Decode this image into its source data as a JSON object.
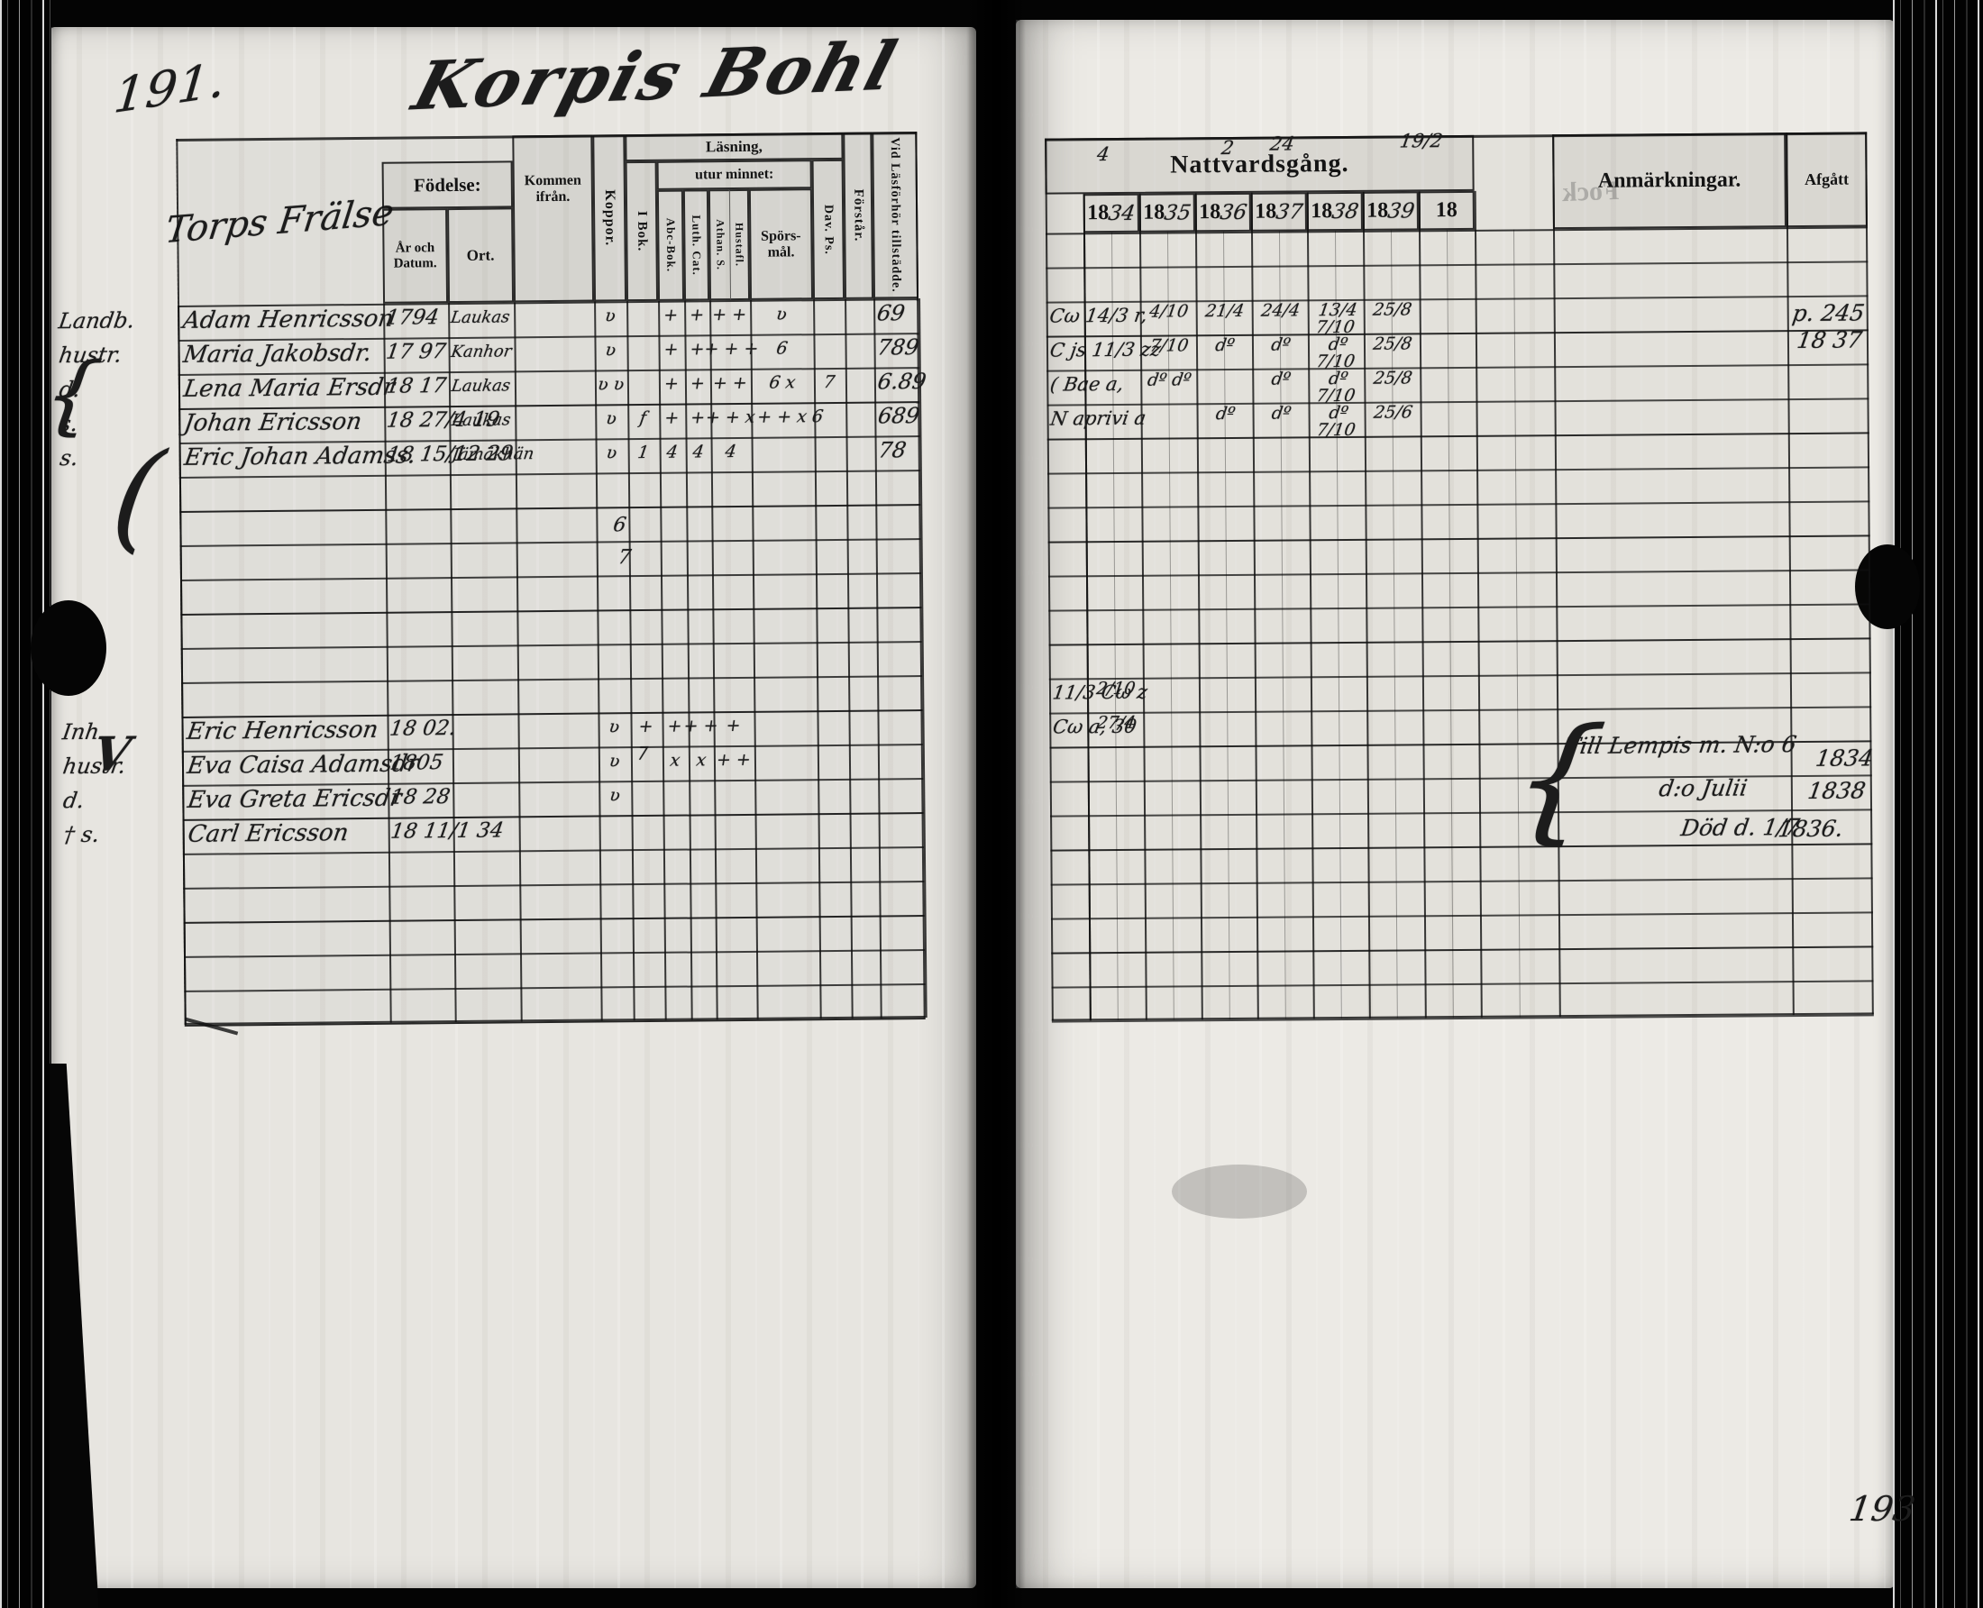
{
  "scan": {
    "left_page_number": "191.",
    "right_page_number": "193",
    "title": "Korpis Bohl",
    "ghost_text": "Fock"
  },
  "left_table": {
    "header": {
      "group_title": "Torps Frälse",
      "fodelse": "Födelse:",
      "ar_och_datum": "År och Datum.",
      "ort": "Ort.",
      "kommen_ifran": "Kommen ifrån.",
      "koppor": "Koppor.",
      "lasning": "Läsning,",
      "utur_minnet": "utur minnet:",
      "i_bok": "I Bok.",
      "abc_bok": "Abc-Bok.",
      "luth_cat": "Luth. Cat.",
      "athan_symb": "Athan. S.",
      "hustafl": "Hustafl.",
      "sporsmal": "Spörs-mål.",
      "dav_ps": "Dav. Ps.",
      "forstar": "Förstår.",
      "vid_lasforhor": "Vid Läsförhör tillstädde."
    },
    "margin_braces": [
      "{",
      "(",
      "V"
    ],
    "rows": [
      {
        "row": 0,
        "margin": "Landb.",
        "name": "Adam Henricsson",
        "born_year": "1794",
        "born_place": "Laukas",
        "marks": [
          "ʋ",
          "",
          "+",
          "+",
          "+ +",
          "ʋ",
          "",
          ""
        ],
        "tillstadde": "69"
      },
      {
        "row": 1,
        "margin": "hustr.",
        "name": "Maria Jakobsdr.",
        "born_year": "17 97",
        "born_place": "Kanhor",
        "marks": [
          "ʋ",
          "",
          "+",
          "+",
          "+ + +",
          "6",
          "",
          ""
        ],
        "tillstadde": "789"
      },
      {
        "row": 2,
        "margin": "d.",
        "name": "Lena Maria Ersdr",
        "born_year": "18 17",
        "born_place": "Laukas",
        "marks": [
          "ʋ ʋ",
          "",
          "+",
          "+",
          "+ +",
          "6 x",
          "7",
          ""
        ],
        "tillstadde": "6.89"
      },
      {
        "row": 3,
        "margin": "s.",
        "name": "Johan Ericsson",
        "born_year": "18 27/4 19",
        "born_place": "Laukas",
        "marks": [
          "ʋ",
          "f",
          "+",
          "+",
          "+ + x",
          "+ + x 6",
          "",
          ""
        ],
        "tillstadde": "689"
      },
      {
        "row": 4,
        "margin": "s.",
        "name": "Eric Johan Adamss.",
        "born_year": "18 15/12 29",
        "born_place": "Jämäkhän",
        "marks": [
          "ʋ",
          "1",
          "4",
          "4",
          "4",
          "",
          "",
          ""
        ],
        "tillstadde": "78"
      },
      {
        "row": 12,
        "margin": "Inh.",
        "name": "Eric Henricsson",
        "born_year": "18 02.",
        "born_place": "",
        "marks": [
          "ʋ",
          "+",
          "+",
          "+ +",
          "+",
          "",
          "",
          ""
        ],
        "tillstadde": ""
      },
      {
        "row": 13,
        "margin": "hustr.",
        "name": "Eva Caisa Adamsdr",
        "born_year": "1805",
        "born_place": "",
        "marks": [
          "ʋ",
          "",
          "x",
          "x",
          "+ +",
          "",
          "",
          ""
        ],
        "tillstadde": ""
      },
      {
        "row": 14,
        "margin": "d.",
        "name": "Eva Greta Ericsdr",
        "born_year": "18 28",
        "born_place": "",
        "marks": [
          "ʋ",
          "",
          "",
          "",
          "",
          "",
          "",
          ""
        ],
        "tillstadde": ""
      },
      {
        "row": 15,
        "margin": "† s.",
        "name": "Carl Ericsson",
        "born_year": "18 11/1 34",
        "born_place": "",
        "marks": [
          "",
          "",
          "",
          "",
          "",
          "",
          "",
          ""
        ],
        "tillstadde": ""
      }
    ],
    "stray_marks": [
      "6",
      "7",
      "⁊"
    ]
  },
  "right_table": {
    "header": {
      "nattvardsgang": "Nattvardsgång.",
      "years_printed": "18",
      "years_script": [
        "34",
        "35",
        "36",
        "37",
        "38",
        "39",
        ""
      ],
      "year_scribbles": [
        "4",
        "2",
        "24",
        "19/2"
      ],
      "anmarkningar": "Anmärkningar.",
      "afgatt": "Afgått"
    },
    "rows": [
      {
        "row": 2,
        "pre": "Cω 14/3 r,",
        "cells": [
          "",
          "4/10",
          "21/4",
          "24/4",
          "13/4 7/10",
          "25/8",
          ""
        ]
      },
      {
        "row": 3,
        "pre": "C js 11/3 zz",
        "cells": [
          "",
          "7/10",
          "dº",
          "dº",
          "dº 7/10",
          "25/8",
          ""
        ]
      },
      {
        "row": 4,
        "pre": "( Bae a,",
        "cells": [
          "",
          "dº dº",
          "",
          "dº",
          "dº 7/10",
          "25/8",
          ""
        ]
      },
      {
        "row": 5,
        "pre": "N aprivi a",
        "cells": [
          "",
          "",
          "dº",
          "dº",
          "dº 7/10",
          "25/6",
          ""
        ]
      },
      {
        "row": 13,
        "pre": "11/3 Cω z",
        "cells": [
          "2/10",
          "",
          "",
          "",
          "",
          "",
          ""
        ]
      },
      {
        "row": 14,
        "pre": "Cω a, 30",
        "cells": [
          "27/4",
          "",
          "",
          "",
          "",
          "",
          ""
        ]
      }
    ],
    "afgatt_entry": [
      "p. 245",
      "18 37"
    ],
    "notes": [
      {
        "text": "Till Lempis m. N:o 6",
        "year": "1834"
      },
      {
        "text": "d:o Julii",
        "year": "1838"
      },
      {
        "text": "Död d. 1/7",
        "year": "1836."
      }
    ]
  }
}
